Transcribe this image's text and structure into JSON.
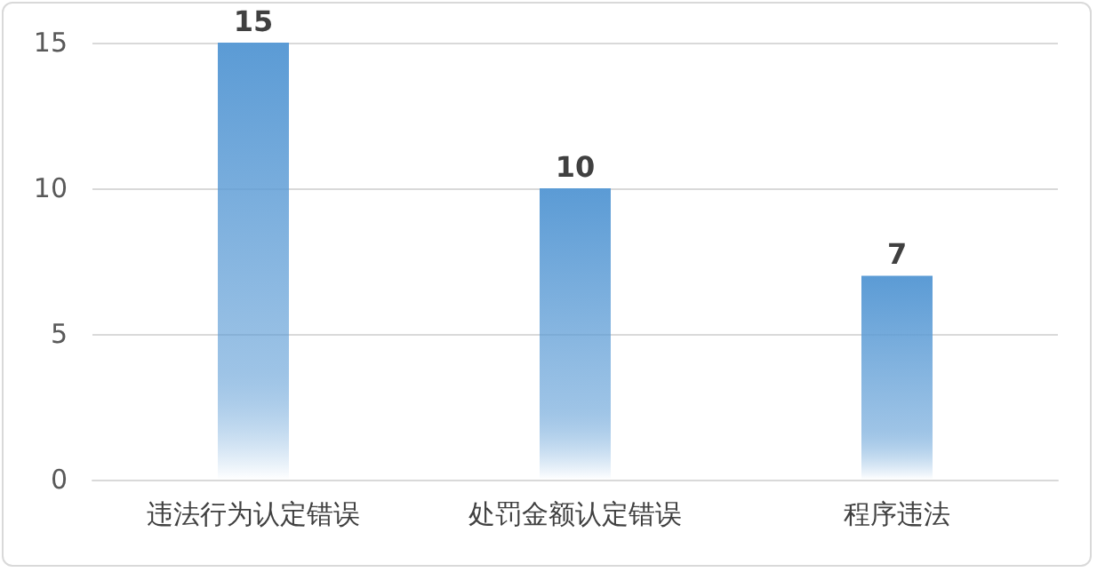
{
  "chart_data": {
    "type": "bar",
    "categories": [
      "违法行为认定错误",
      "处罚金额认定错误",
      "程序违法"
    ],
    "values": [
      15,
      10,
      7
    ],
    "color": "#5b9bd5",
    "ylim": [
      0,
      15
    ],
    "yticks": [
      0,
      5,
      10,
      15
    ],
    "grid": "y",
    "data_labels": true
  }
}
